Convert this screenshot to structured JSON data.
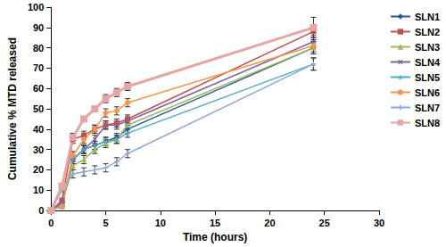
{
  "chart_data": {
    "type": "line",
    "x_label": "Time (hours)",
    "y_label": "Cumulative % MTD released",
    "x": [
      0,
      1,
      2,
      3,
      4,
      5,
      6,
      7,
      24
    ],
    "xlim": [
      0,
      30
    ],
    "xticks": [
      0,
      5,
      10,
      15,
      20,
      25,
      30
    ],
    "ylim": [
      0,
      100
    ],
    "yticks": [
      0,
      10,
      20,
      30,
      40,
      50,
      60,
      70,
      80,
      90,
      100
    ],
    "grid": false,
    "legend": "right",
    "series": [
      {
        "name": "SLN1",
        "color": "#2a5a9b",
        "marker": "diamond",
        "values": [
          0,
          3,
          25,
          30,
          32,
          34,
          36,
          40,
          80
        ],
        "errors": [
          0,
          1,
          2,
          2,
          2,
          2,
          2,
          2,
          3
        ]
      },
      {
        "name": "SLN2",
        "color": "#c0504d",
        "marker": "square",
        "values": [
          0,
          5,
          35,
          37,
          40,
          42,
          43,
          45,
          88
        ],
        "errors": [
          0,
          1,
          2,
          2,
          2,
          2,
          2,
          2,
          3
        ]
      },
      {
        "name": "SLN3",
        "color": "#9bbb59",
        "marker": "triangle",
        "values": [
          0,
          3,
          22,
          25,
          30,
          33,
          35,
          42,
          80
        ],
        "errors": [
          0,
          1,
          2,
          2,
          2,
          2,
          2,
          2,
          3
        ]
      },
      {
        "name": "SLN4",
        "color": "#8064a2",
        "marker": "x",
        "values": [
          0,
          4,
          25,
          30,
          35,
          42,
          42,
          44,
          83
        ],
        "errors": [
          0,
          1,
          2,
          2,
          2,
          2,
          2,
          2,
          3
        ]
      },
      {
        "name": "SLN5",
        "color": "#4bacc6",
        "marker": "star",
        "values": [
          0,
          3,
          25,
          30,
          32,
          34,
          35,
          38,
          72
        ],
        "errors": [
          0,
          1,
          2,
          2,
          2,
          2,
          2,
          2,
          3
        ]
      },
      {
        "name": "SLN6",
        "color": "#f79646",
        "marker": "circle",
        "values": [
          0,
          2,
          27,
          35,
          40,
          48,
          49,
          53,
          81
        ],
        "errors": [
          0,
          1,
          2,
          2,
          2,
          2,
          2,
          2,
          3
        ]
      },
      {
        "name": "SLN7",
        "color": "#8fa9d6",
        "marker": "plus",
        "values": [
          0,
          10,
          18,
          19,
          20,
          21,
          24,
          28,
          72
        ],
        "errors": [
          0,
          1,
          2,
          2,
          2,
          2,
          2,
          2,
          3
        ]
      },
      {
        "name": "SLN8",
        "color": "#e6a5a3",
        "marker": "dash",
        "values": [
          0,
          12,
          36,
          45,
          50,
          55,
          58,
          61,
          90
        ],
        "errors": [
          0,
          1,
          2,
          1,
          1,
          2,
          2,
          2,
          5
        ]
      }
    ]
  }
}
